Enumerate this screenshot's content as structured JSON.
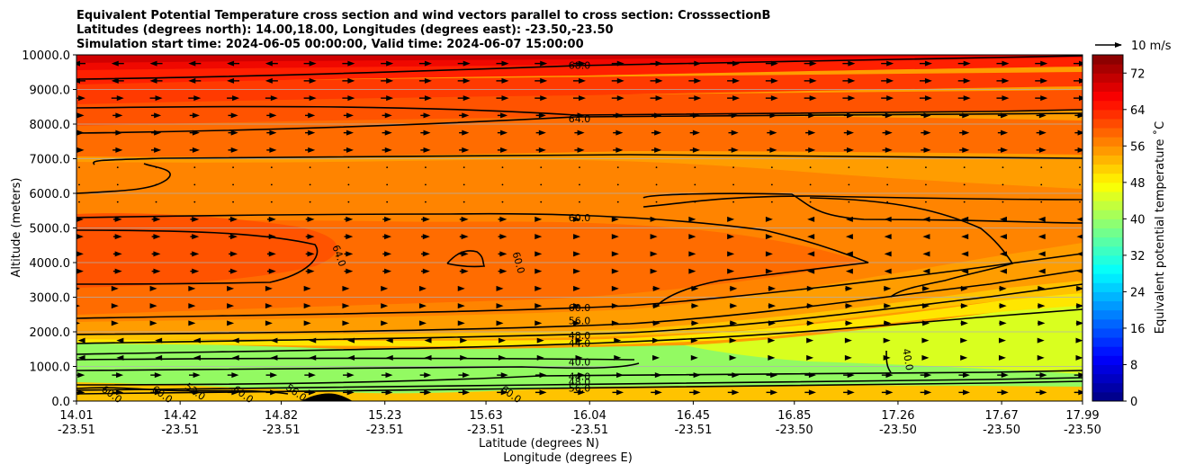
{
  "chart_data": {
    "type": "contourf",
    "title_lines": [
      "Equivalent Potential Temperature cross section and wind vectors parallel to cross section: CrosssectionB",
      "Latitudes (degrees north): 14.00,18.00, Longitudes (degrees east): -23.50,-23.50",
      "Simulation start time: 2024-06-05 00:00:00, Valid time: 2024-06-07 15:00:00"
    ],
    "ylabel": "Altitude (meters)",
    "xlabel_lines": [
      "Latitude (degrees N)",
      "Longitude (degrees E)"
    ],
    "xlim": [
      14.01,
      17.99
    ],
    "ylim": [
      0,
      10000
    ],
    "y_ticks": [
      {
        "value": 0,
        "label": "0.0"
      },
      {
        "value": 1000,
        "label": "1000.0"
      },
      {
        "value": 2000,
        "label": "2000.0"
      },
      {
        "value": 3000,
        "label": "3000.0"
      },
      {
        "value": 4000,
        "label": "4000.0"
      },
      {
        "value": 5000,
        "label": "5000.0"
      },
      {
        "value": 6000,
        "label": "6000.0"
      },
      {
        "value": 7000,
        "label": "7000.0"
      },
      {
        "value": 8000,
        "label": "8000.0"
      },
      {
        "value": 9000,
        "label": "9000.0"
      },
      {
        "value": 10000,
        "label": "10000.0"
      }
    ],
    "x_ticks": [
      {
        "value": 14.01,
        "lat": "14.01",
        "lon": "-23.51"
      },
      {
        "value": 14.42,
        "lat": "14.42",
        "lon": "-23.51"
      },
      {
        "value": 14.82,
        "lat": "14.82",
        "lon": "-23.51"
      },
      {
        "value": 15.23,
        "lat": "15.23",
        "lon": "-23.51"
      },
      {
        "value": 15.63,
        "lat": "15.63",
        "lon": "-23.51"
      },
      {
        "value": 16.04,
        "lat": "16.04",
        "lon": "-23.51"
      },
      {
        "value": 16.45,
        "lat": "16.45",
        "lon": "-23.51"
      },
      {
        "value": 16.85,
        "lat": "16.85",
        "lon": "-23.50"
      },
      {
        "value": 17.26,
        "lat": "17.26",
        "lon": "-23.50"
      },
      {
        "value": 17.67,
        "lat": "17.67",
        "lon": "-23.50"
      },
      {
        "value": 17.99,
        "lat": "17.99",
        "lon": "-23.50"
      }
    ],
    "colorbar": {
      "label": "Equivalent potential temperature ˚C",
      "min": 0,
      "max": 76,
      "step": 2,
      "ticks": [
        {
          "value": 0,
          "label": "0"
        },
        {
          "value": 8,
          "label": "8"
        },
        {
          "value": 16,
          "label": "16"
        },
        {
          "value": 24,
          "label": "24"
        },
        {
          "value": 32,
          "label": "32"
        },
        {
          "value": 40,
          "label": "40"
        },
        {
          "value": 48,
          "label": "48"
        },
        {
          "value": 56,
          "label": "56"
        },
        {
          "value": 64,
          "label": "64"
        },
        {
          "value": 72,
          "label": "72"
        }
      ]
    },
    "quiver_key": {
      "label": "10 m/s"
    },
    "filled_layers": [
      {
        "value": 46,
        "color": "#93fa62"
      },
      {
        "value": 50,
        "color": "#d9ff1f"
      },
      {
        "value": 53,
        "color": "#ffe600"
      },
      {
        "value": 56,
        "color": "#ffc300"
      },
      {
        "value": 59,
        "color": "#ff9d00"
      },
      {
        "value": 61,
        "color": "#ff8400"
      },
      {
        "value": 63,
        "color": "#ff6c00"
      },
      {
        "value": 64,
        "color": "#ff5300"
      },
      {
        "value": 66,
        "color": "#ff3a00"
      },
      {
        "value": 68,
        "color": "#ff2000"
      },
      {
        "value": 70,
        "color": "#f00800"
      },
      {
        "value": 72,
        "color": "#d00000"
      }
    ],
    "contour_labels": [
      {
        "text": "68.0",
        "x": 16.0,
        "y": 9700
      },
      {
        "text": "64.0",
        "x": 16.0,
        "y": 8150
      },
      {
        "text": "60.0",
        "x": 16.0,
        "y": 5300
      },
      {
        "text": "64.0",
        "x": 15.05,
        "y": 4200
      },
      {
        "text": "60.0",
        "x": 15.76,
        "y": 4000
      },
      {
        "text": "60.0",
        "x": 16.0,
        "y": 2700
      },
      {
        "text": "56.0",
        "x": 16.0,
        "y": 2330
      },
      {
        "text": "48.0",
        "x": 16.0,
        "y": 1900
      },
      {
        "text": "44.0",
        "x": 16.0,
        "y": 1680
      },
      {
        "text": "40.0",
        "x": 16.0,
        "y": 1130
      },
      {
        "text": "44.0",
        "x": 16.0,
        "y": 720
      },
      {
        "text": "48.0",
        "x": 16.0,
        "y": 560
      },
      {
        "text": "56.0",
        "x": 16.0,
        "y": 380
      },
      {
        "text": "40.0",
        "x": 17.3,
        "y": 1200
      },
      {
        "text": "60.0",
        "x": 14.15,
        "y": 200
      },
      {
        "text": "60.0",
        "x": 14.35,
        "y": 200
      },
      {
        "text": "52.0",
        "x": 14.48,
        "y": 280
      },
      {
        "text": "60.0",
        "x": 14.67,
        "y": 200
      },
      {
        "text": "56.0",
        "x": 14.88,
        "y": 250
      },
      {
        "text": "60.0",
        "x": 15.73,
        "y": 200
      }
    ]
  }
}
